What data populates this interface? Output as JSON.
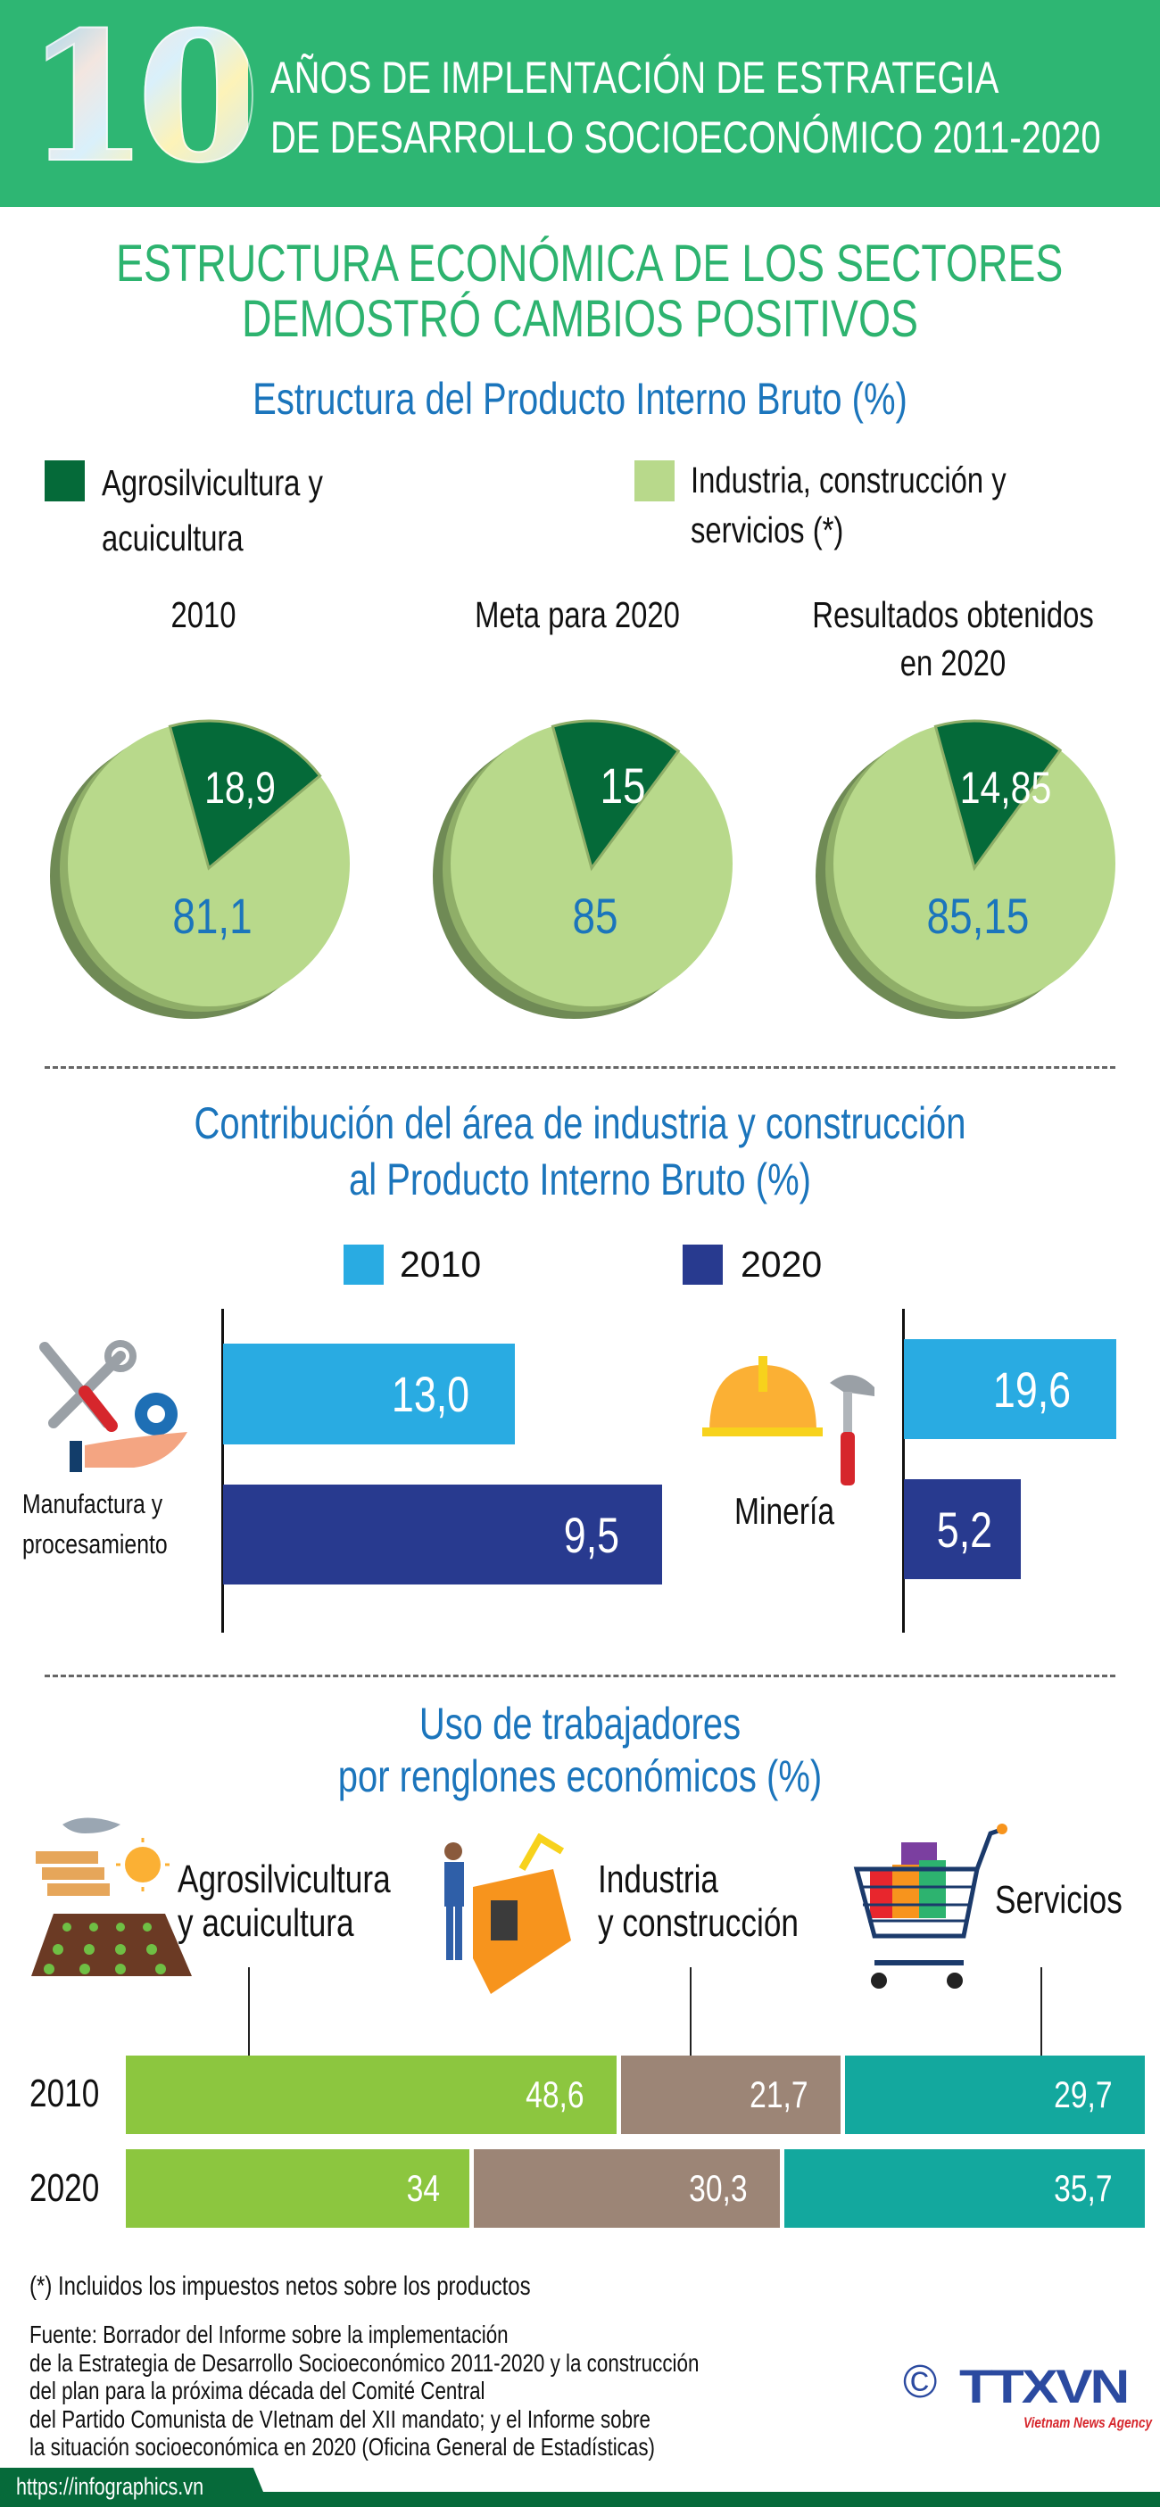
{
  "header": {
    "number": "10",
    "line1": "AÑOS DE IMPLENTACIÓN DE ESTRATEGIA",
    "line2": "DE DESARROLLO SOCIOECONÓMICO 2011-2020"
  },
  "title": {
    "line1": "ESTRUCTURA ECONÓMICA DE LOS SECTORES",
    "line2": "DEMOSTRÓ CAMBIOS POSITIVOS"
  },
  "colors": {
    "header_green": "#2eb673",
    "agro_dark": "#056a39",
    "industry_light": "#b8d98b",
    "bar_2010": "#29abe2",
    "bar_2020": "#283a8f",
    "labor_agro": "#8cc63f",
    "labor_industry": "#9c8576",
    "labor_services": "#13a89e",
    "title_blue": "#1b75bc"
  },
  "chart_data": [
    {
      "type": "pie",
      "title": "Estructura del Producto Interno Bruto (%)",
      "legend": [
        "Agrosilvicultura y acuicultura",
        "Industria, construcción y servicios (*)"
      ],
      "pies": [
        {
          "label": "2010",
          "values": [
            18.9,
            81.1
          ],
          "labels": [
            "18,9",
            "81,1"
          ]
        },
        {
          "label": "Meta para 2020",
          "values": [
            15,
            85
          ],
          "labels": [
            "15",
            "85"
          ]
        },
        {
          "label": "Resultados obtenidos en 2020",
          "label_line1": "Resultados obtenidos",
          "label_line2": "en 2020",
          "values": [
            14.85,
            85.15
          ],
          "labels": [
            "14,85",
            "85,15"
          ]
        }
      ]
    },
    {
      "type": "bar",
      "title_line1": "Contribución del área de industria y construcción",
      "title_line2": "al Producto Interno Bruto (%)",
      "series_names": [
        "2010",
        "2020"
      ],
      "groups": [
        {
          "label_line1": "Manufactura y",
          "label_line2": "procesamiento",
          "values": [
            13.0,
            9.5
          ],
          "labels": [
            "13,0",
            "9,5"
          ]
        },
        {
          "label": "Minería",
          "values": [
            19.6,
            5.2
          ],
          "labels": [
            "19,6",
            "5,2"
          ]
        }
      ]
    },
    {
      "type": "bar",
      "stacked": true,
      "title_line1": "Uso de trabajadores",
      "title_line2": "por renglones económicos (%)",
      "categories": [
        {
          "line1": "Agrosilvicultura",
          "line2": "y acuicultura",
          "icon": "farming-icon"
        },
        {
          "line1": "Industria",
          "line2": "y construcción",
          "icon": "factory-worker-icon"
        },
        {
          "line1": "Servicios",
          "icon": "shopping-cart-icon"
        }
      ],
      "rows": [
        {
          "year": "2010",
          "values": [
            48.6,
            21.7,
            29.7
          ],
          "labels": [
            "48,6",
            "21,7",
            "29,7"
          ]
        },
        {
          "year": "2020",
          "values": [
            34,
            30.3,
            35.7
          ],
          "labels": [
            "34",
            "30,3",
            "35,7"
          ]
        }
      ]
    }
  ],
  "footnote": "(*) Incluidos los impuestos netos sobre los productos",
  "source": [
    "Fuente: Borrador del Informe sobre la implementación",
    "de la Estrategia de Desarrollo Socioeconómico 2011-2020 y la construcción",
    "del plan para la próxima década del Comité Central",
    "del Partido Comunista de VIetnam del XII mandato; y el Informe sobre",
    "la situación socioeconómica en 2020 (Oficina General de Estadísticas)"
  ],
  "logo": {
    "copyright": "©",
    "name": "TTXVN",
    "agency": "Vietnam News Agency"
  },
  "footer": {
    "url": "https://infographics.vn"
  }
}
